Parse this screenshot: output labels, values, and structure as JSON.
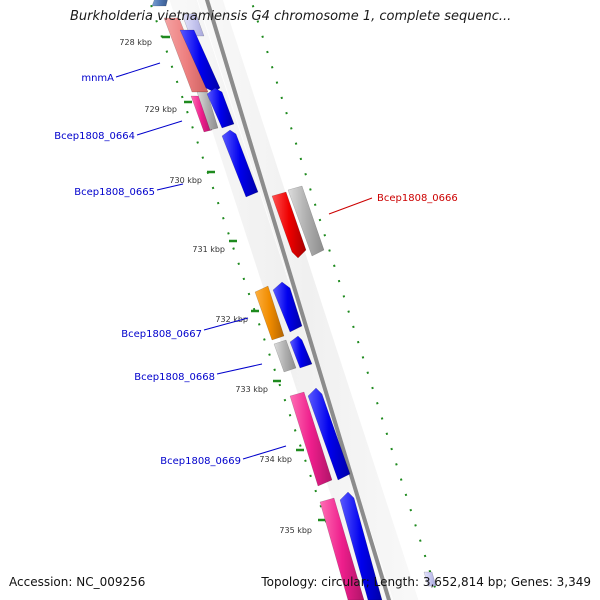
{
  "title": "Burkholderia vietnamiensis G4 chromosome 1, complete sequenc...",
  "footer": {
    "accession_label": "Accession:",
    "accession": "NC_009256",
    "topology_label": "Topology:",
    "topology": "circular",
    "length_label": "Length:",
    "length": "3,652,814 bp",
    "genes_label": "Genes:",
    "genes": "3,349"
  },
  "ticks": [
    {
      "label": "728 kbp"
    },
    {
      "label": "729 kbp"
    },
    {
      "label": "730 kbp"
    },
    {
      "label": "731 kbp"
    },
    {
      "label": "732 kbp"
    },
    {
      "label": "733 kbp"
    },
    {
      "label": "734 kbp"
    },
    {
      "label": "735 kbp"
    }
  ],
  "gene_labels": [
    {
      "name": "mnmA",
      "color": "#0000cc"
    },
    {
      "name": "Bcep1808_0664",
      "color": "#0000cc"
    },
    {
      "name": "Bcep1808_0665",
      "color": "#0000cc"
    },
    {
      "name": "Bcep1808_0666",
      "color": "#cc0000"
    },
    {
      "name": "Bcep1808_0667",
      "color": "#0000cc"
    },
    {
      "name": "Bcep1808_0668",
      "color": "#0000cc"
    },
    {
      "name": "Bcep1808_0669",
      "color": "#0000cc"
    }
  ],
  "colors": {
    "backbone": "#8c8c8c",
    "tick_dot": "#1e8a1e",
    "cds_blue": "#0000ee",
    "cds_red": "#ee0000",
    "cds_pink": "#ee1e8c",
    "cds_light_red": "#ee8080",
    "cds_orange": "#f08c00",
    "cds_gray": "#b0b0b0",
    "cds_light_blue": "#c8c8f0",
    "cds_steel_blue": "#5078b4"
  }
}
